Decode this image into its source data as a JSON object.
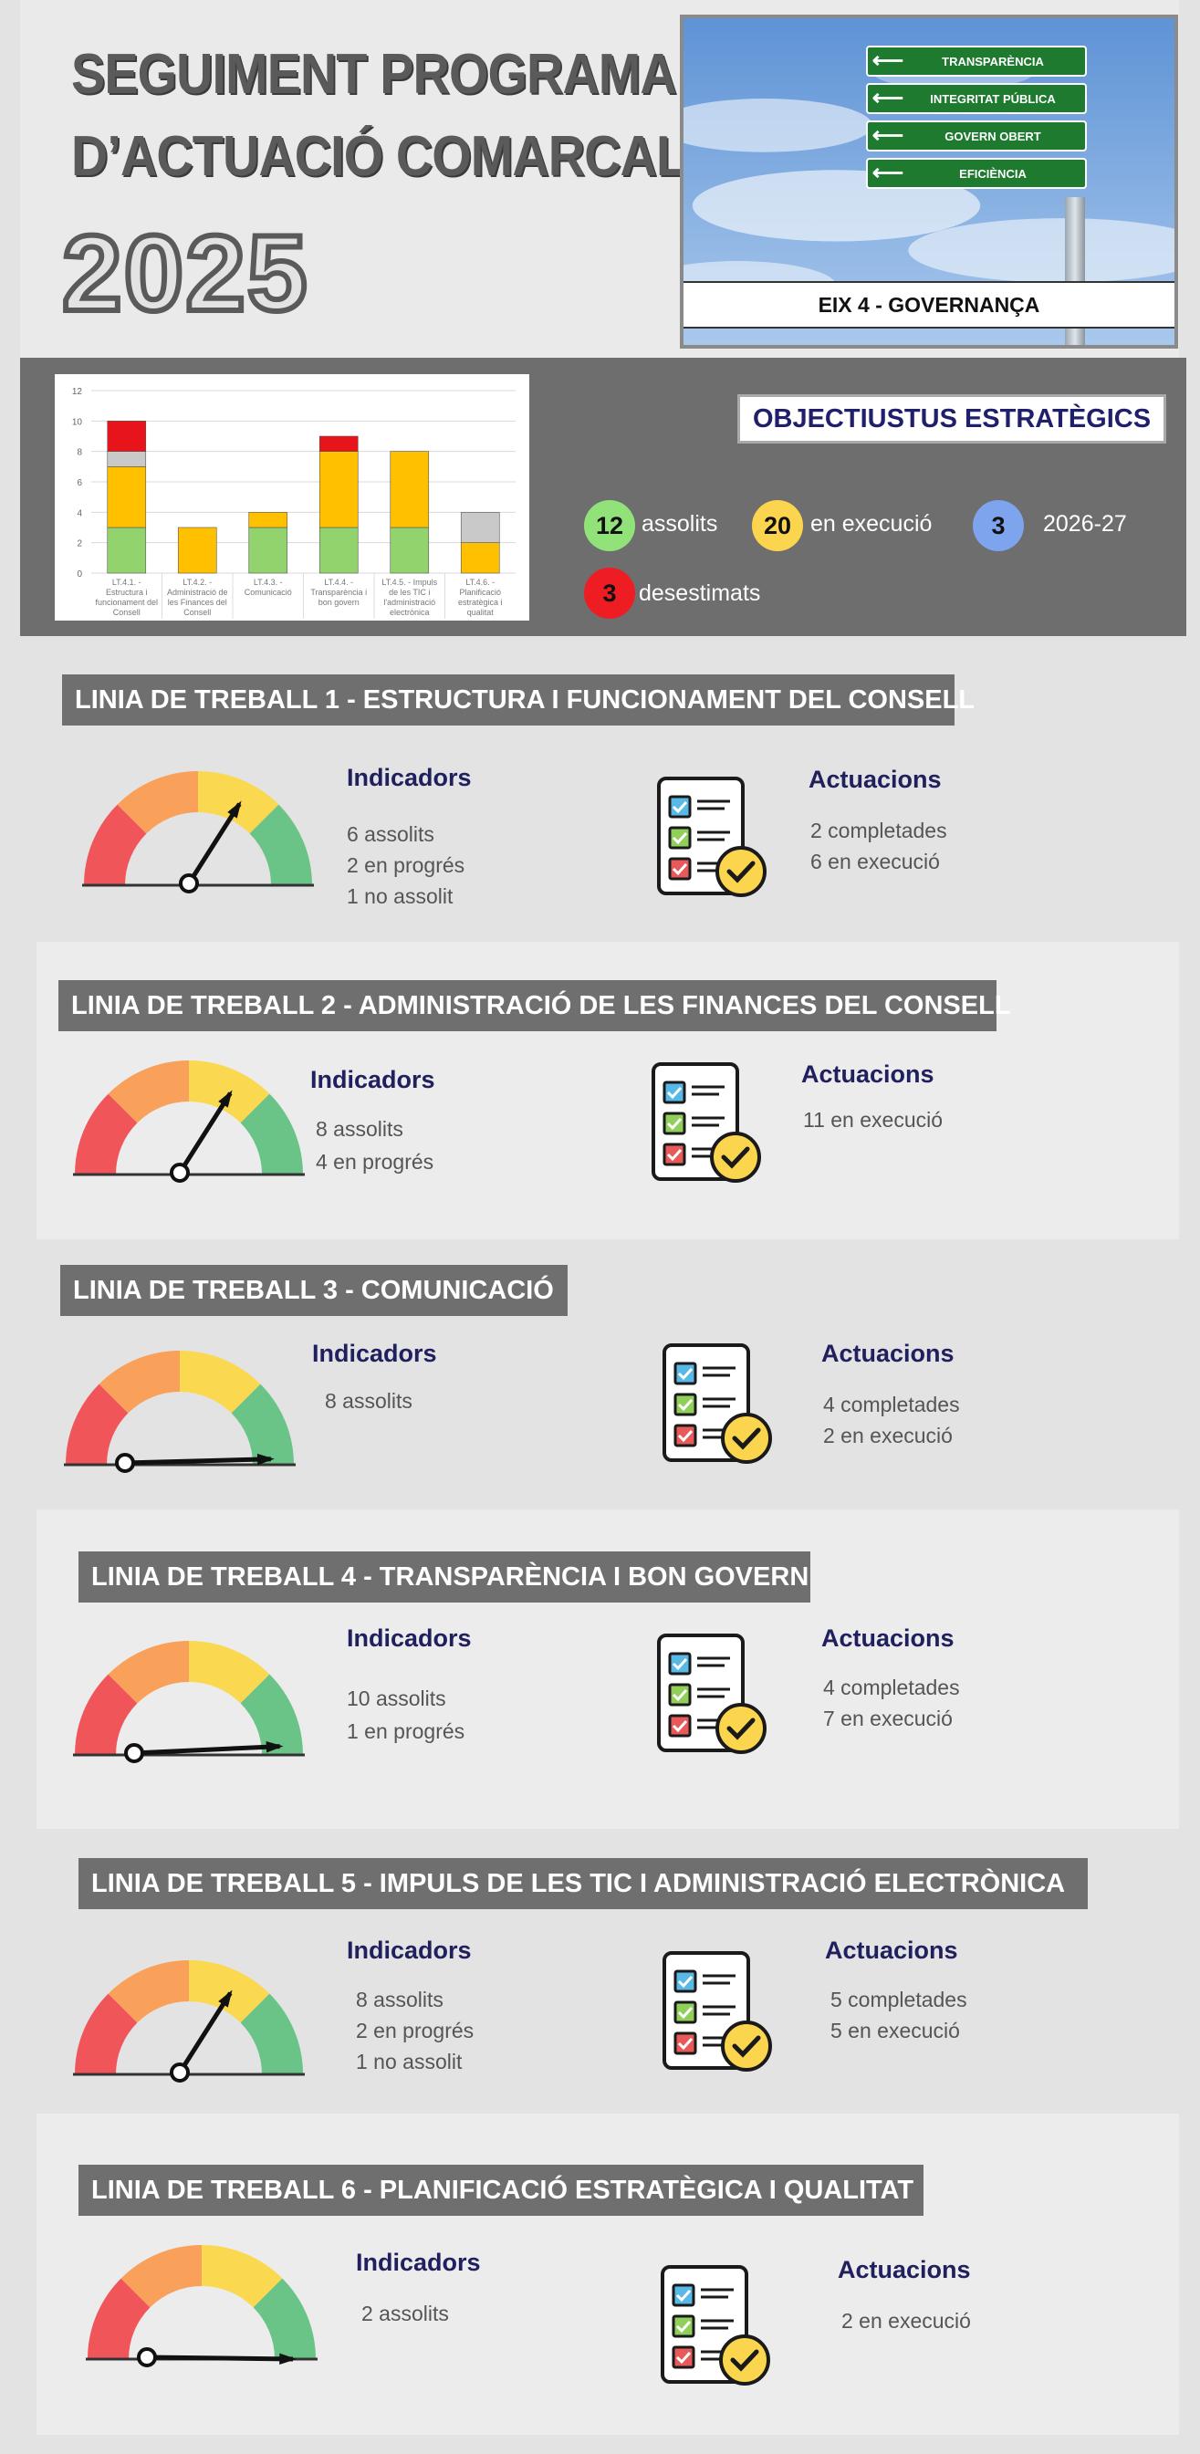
{
  "header": {
    "title_line1": "SEGUIMENT PROGRAMA",
    "title_line2": "D’ACTUACIÓ COMARCAL",
    "year": "2025",
    "signs": [
      "TRANSPARÈNCIA",
      "INTEGRITAT PÚBLICA",
      "GOVERN OBERT",
      "EFICIÈNCIA"
    ],
    "eix_label": "EIX 4 - GOVERNANÇA"
  },
  "chart_data": {
    "type": "bar",
    "stacked": true,
    "categories": [
      [
        "LT.4.1. -",
        "Estructura i",
        "funcionament del",
        "Consell"
      ],
      [
        "LT.4.2. -",
        "Administració de",
        "les Finances del",
        "Consell"
      ],
      [
        "LT.4.3. -",
        "Comunicació"
      ],
      [
        "LT.4.4. -",
        "Transparència i",
        "bon govern"
      ],
      [
        "LT.4.5. - Impuls",
        "de les TIC i",
        "l'administració",
        "electrònica"
      ],
      [
        "LT.4.6. -",
        "Planificació",
        "estratègica i",
        "qualitat"
      ]
    ],
    "series": [
      {
        "color": "#92d36e",
        "values": [
          3,
          0,
          3,
          3,
          3,
          0
        ]
      },
      {
        "color": "#ffc000",
        "values": [
          4,
          3,
          1,
          5,
          5,
          2
        ]
      },
      {
        "color": "#c9c9c9",
        "values": [
          1,
          0,
          0,
          0,
          0,
          2
        ]
      },
      {
        "color": "#e8141b",
        "values": [
          2,
          0,
          0,
          1,
          0,
          0
        ]
      }
    ],
    "ylim": [
      0,
      12
    ],
    "yticks": [
      "0",
      "2",
      "4",
      "6",
      "8",
      "10",
      "12"
    ],
    "grid": true
  },
  "objectives": {
    "title": "OBJECTIUSTUS ESTRATÈGICS",
    "items": [
      {
        "count": "12",
        "label": "assolits",
        "color": "#92e27a"
      },
      {
        "count": "20",
        "label": "en execució",
        "color": "#fbd54e"
      },
      {
        "count": "3",
        "label": "2026-27",
        "color": "#7ea4ee"
      },
      {
        "count": "3",
        "label": "desestimats",
        "color": "#ee1d23"
      }
    ]
  },
  "lines": [
    {
      "title": "LINIA DE TREBALL 1 - ESTRUCTURA I FUNCIONAMENT DEL CONSELL",
      "ind_head": "Indicadors",
      "indicators": [
        "6  assolits",
        "2  en progrés",
        "1  no assolit"
      ],
      "act_head": "Actuacions",
      "actions": [
        "2  completades",
        "6  en execució"
      ]
    },
    {
      "title": "LINIA DE TREBALL 2 - ADMINISTRACIÓ DE LES FINANCES DEL CONSELL",
      "ind_head": "Indicadors",
      "indicators": [
        "8  assolits",
        "4  en progrés"
      ],
      "act_head": "Actuacions",
      "actions": [
        "11  en execució"
      ]
    },
    {
      "title": "LINIA DE TREBALL 3 - COMUNICACIÓ",
      "ind_head": "Indicadors",
      "indicators": [
        "8  assolits"
      ],
      "act_head": "Actuacions",
      "actions": [
        "4  completades",
        "2  en execució"
      ]
    },
    {
      "title": "LINIA DE TREBALL 4 - TRANSPARÈNCIA I BON GOVERN",
      "ind_head": "Indicadors",
      "indicators": [
        "10  assolits",
        "1   en progrés"
      ],
      "act_head": "Actuacions",
      "actions": [
        "4  completades",
        "7  en execució"
      ]
    },
    {
      "title": "LINIA DE TREBALL 5 - IMPULS DE LES TIC I ADMINISTRACIÓ ELECTRÒNICA",
      "ind_head": "Indicadors",
      "indicators": [
        "8  assolits",
        "2  en progrés",
        "1  no assolit"
      ],
      "act_head": "Actuacions",
      "actions": [
        "5  completades",
        "5  en execució"
      ]
    },
    {
      "title": "LINIA DE TREBALL 6 - PLANIFICACIÓ ESTRATÈGICA I QUALITAT",
      "ind_head": "Indicadors",
      "indicators": [
        "2  assolits"
      ],
      "act_head": "Actuacions",
      "actions": [
        "2  en execució"
      ]
    }
  ],
  "gauge_colors": [
    "#f0555a",
    "#f9a05a",
    "#fad84f",
    "#6ac487"
  ],
  "needle_level": [
    0.65,
    0.65,
    0.98,
    0.97,
    0.65,
    1.0
  ]
}
